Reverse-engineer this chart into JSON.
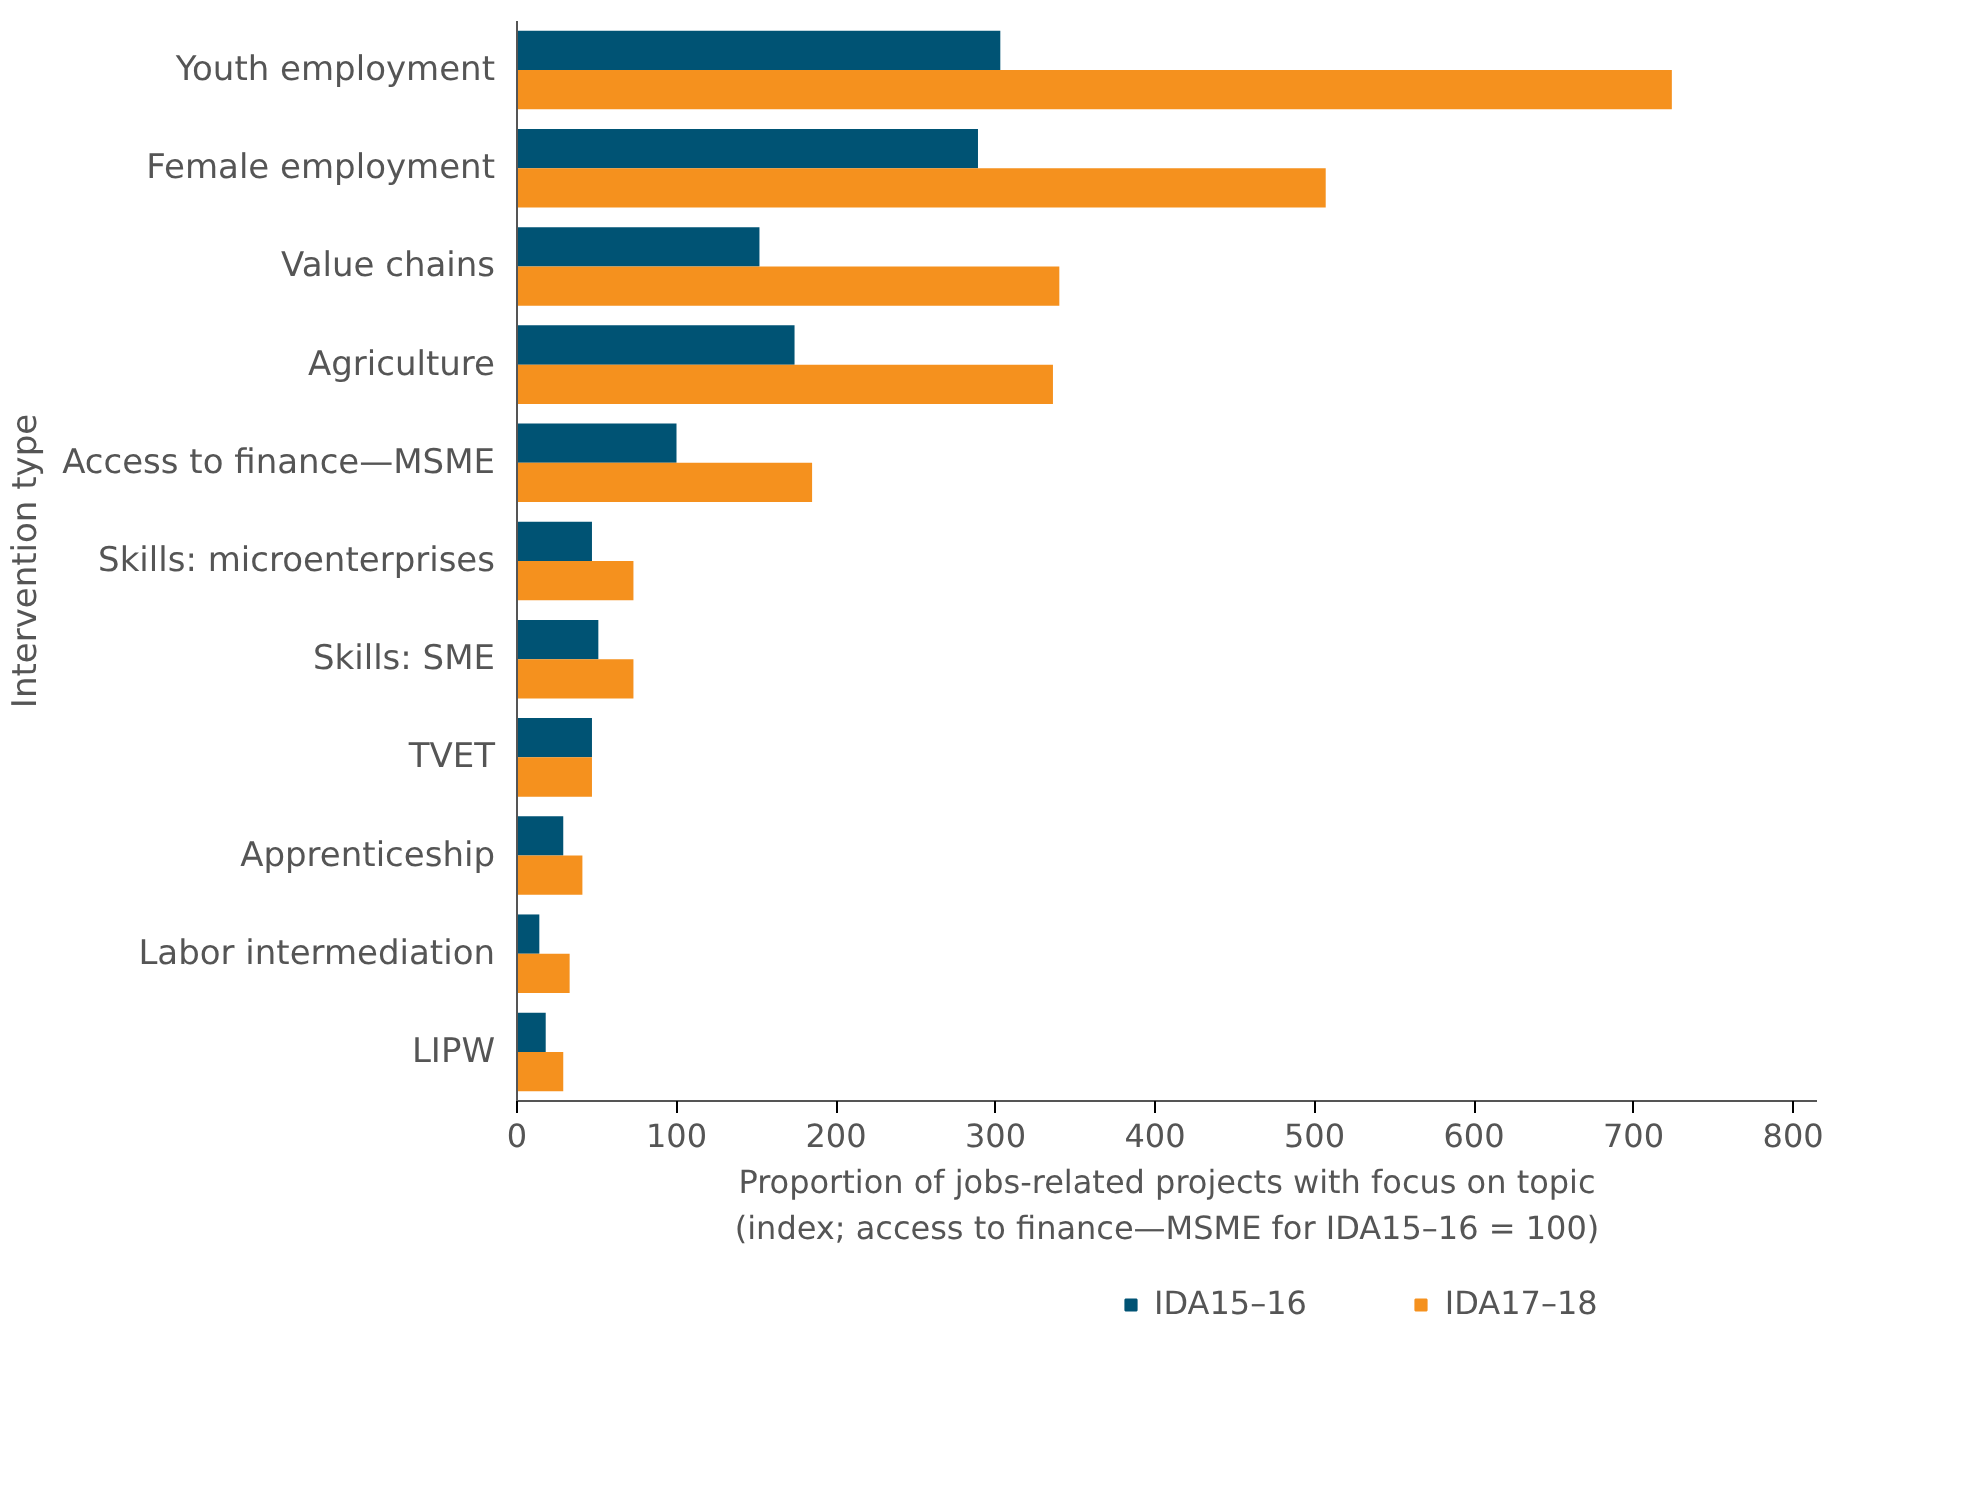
{
  "chart_data": {
    "type": "bar",
    "orientation": "horizontal",
    "xlabel": "Proportion of jobs-related projects with focus on topic\n(index; access to finance—MSME for IDA15–16 = 100)",
    "ylabel": "Intervention type",
    "categories": [
      "Youth employment",
      "Female employment",
      "Value chains",
      "Agriculture",
      "Access to finance—MSME",
      "Skills: microenterprises",
      "Skills: SME",
      "TVET",
      "Apprenticeship",
      "Labor intermediation",
      "LIPW"
    ],
    "series": [
      {
        "name": "IDA15–16",
        "color": "#005374",
        "values": [
          303,
          289,
          152,
          174,
          100,
          47,
          51,
          47,
          29,
          14,
          18
        ]
      },
      {
        "name": "IDA17–18",
        "color": "#f5911e",
        "values": [
          724,
          507,
          340,
          336,
          185,
          73,
          73,
          47,
          41,
          33,
          29
        ]
      }
    ],
    "xlim": [
      0,
      815
    ],
    "xticks": [
      0,
      100,
      200,
      300,
      400,
      500,
      600,
      700,
      800
    ],
    "grid": false,
    "legend": "bottom"
  }
}
